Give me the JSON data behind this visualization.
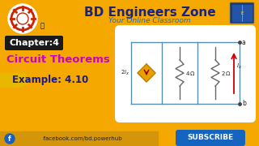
{
  "bg_color": "#F5A800",
  "white_panel_color": "#FFFFFF",
  "title_text": "BD Engineers Zone",
  "subtitle_text": "Your Online Classroom",
  "chapter_text": "Chapter:4",
  "subject_text": "Circuit Theorems",
  "example_text": "Example: 4.10",
  "facebook_text": "  facebook.com/bd.powerhub",
  "subscribe_text": "SUBSCRIBE",
  "title_color": "#1A237E",
  "subtitle_color": "#1A6EC7",
  "chapter_bg": "#1A1A1A",
  "chapter_fg": "#FFFFFF",
  "subject_color": "#CC00CC",
  "example_color": "#1A1A8C",
  "subscribe_bg": "#1565C0",
  "subscribe_fg": "#FFFFFF",
  "fb_bar_color": "#D4950A",
  "circuit_line_color": "#5B8DB0",
  "dependent_source_color": "#E8A000",
  "resistor_color": "#666666",
  "current_arrow_color": "#CC0000",
  "logo_outer_color": "#FFFFFF",
  "logo_gear_color": "#CC2200",
  "book_bg": "#1A3A6A"
}
